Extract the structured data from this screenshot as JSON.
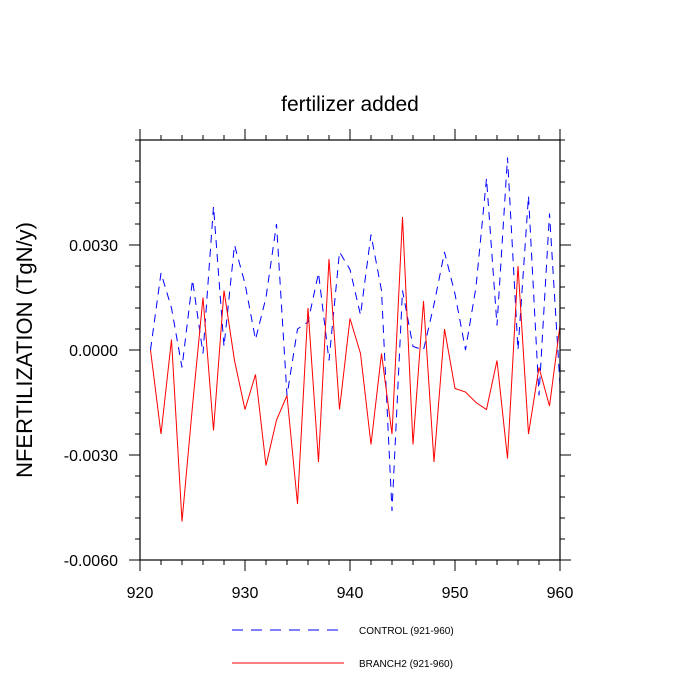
{
  "chart_data": {
    "type": "line",
    "title": "fertilizer added",
    "xlabel": "",
    "ylabel": "NFERTILIZATION  (TgN/y)",
    "xlim": [
      920,
      960
    ],
    "ylim": [
      -0.006,
      0.006
    ],
    "xticks": [
      920,
      930,
      940,
      950,
      960
    ],
    "xtick_labels": [
      "920",
      "930",
      "940",
      "950",
      "960"
    ],
    "yticks": [
      -0.006,
      -0.003,
      0.0,
      0.003
    ],
    "ytick_labels": [
      "-0.0060",
      "-0.0030",
      "0.0000",
      "0.0030"
    ],
    "x": [
      921,
      922,
      923,
      924,
      925,
      926,
      927,
      928,
      929,
      930,
      931,
      932,
      933,
      934,
      935,
      936,
      937,
      938,
      939,
      940,
      941,
      942,
      943,
      944,
      945,
      946,
      947,
      948,
      949,
      950,
      951,
      952,
      953,
      954,
      955,
      956,
      957,
      958,
      959,
      960
    ],
    "series": [
      {
        "name": "CONTROL",
        "legend_label": "CONTROL (921-960)",
        "color": "#0000ff",
        "dash": "dashed",
        "values": [
          0.0,
          0.0022,
          0.0012,
          -0.0005,
          0.002,
          -0.0001,
          0.0041,
          0.0001,
          0.003,
          0.0019,
          0.0003,
          0.0015,
          0.0036,
          -0.0013,
          0.0006,
          0.0008,
          0.0022,
          -0.0003,
          0.0028,
          0.0023,
          0.001,
          0.0033,
          0.0017,
          -0.0046,
          0.0017,
          0.0001,
          0.0,
          0.0013,
          0.0028,
          0.0016,
          0.0,
          0.0018,
          0.0049,
          0.0007,
          0.0055,
          0.0,
          0.0044,
          -0.0013,
          0.0039,
          -0.001
        ]
      },
      {
        "name": "BRANCH2",
        "legend_label": "BRANCH2 (921-960)",
        "color": "#ff0000",
        "dash": "solid",
        "values": [
          0.0,
          -0.0024,
          0.0003,
          -0.0049,
          -0.0016,
          0.0015,
          -0.0023,
          0.0017,
          -0.0003,
          -0.0017,
          -0.0007,
          -0.0033,
          -0.002,
          -0.0013,
          -0.0044,
          0.0012,
          -0.0032,
          0.0026,
          -0.0017,
          0.0009,
          -0.0001,
          -0.0027,
          -0.0001,
          -0.0024,
          0.0038,
          -0.0027,
          0.0014,
          -0.0032,
          0.0006,
          -0.0011,
          -0.0012,
          -0.0015,
          -0.0017,
          -0.0003,
          -0.0031,
          0.0024,
          -0.0024,
          -0.0005,
          -0.0016,
          0.0007
        ]
      }
    ]
  }
}
